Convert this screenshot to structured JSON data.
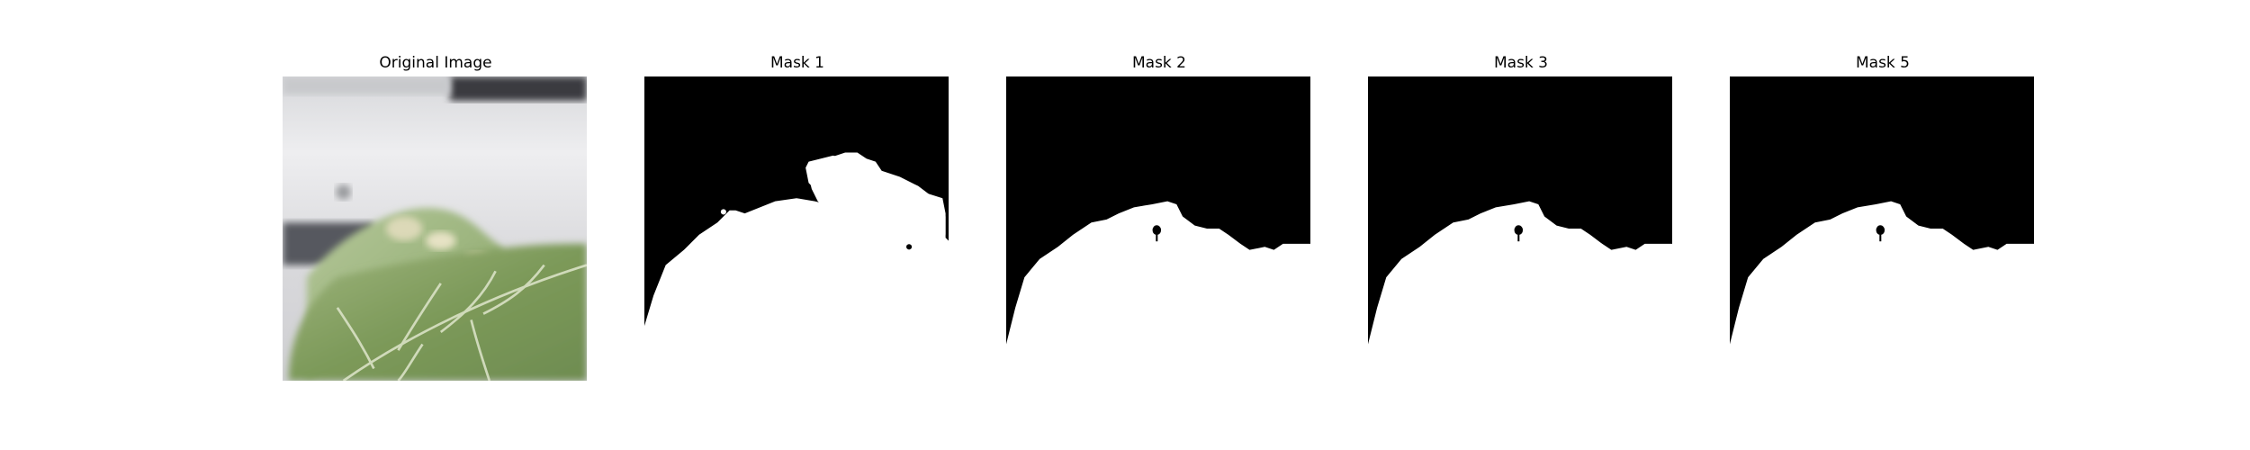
{
  "figure": {
    "panels": [
      {
        "title": "Original Image",
        "kind": "photo"
      },
      {
        "title": "Mask 1",
        "kind": "mask"
      },
      {
        "title": "Mask 2",
        "kind": "mask"
      },
      {
        "title": "Mask 3",
        "kind": "mask"
      },
      {
        "title": "Mask 5",
        "kind": "mask"
      }
    ]
  },
  "colors": {
    "mask_background": "#000000",
    "mask_foreground": "#ffffff",
    "leaf_green": "#7f9a5c",
    "leaf_light": "#c9d3b2",
    "background_grey": "#dcdcdf"
  }
}
